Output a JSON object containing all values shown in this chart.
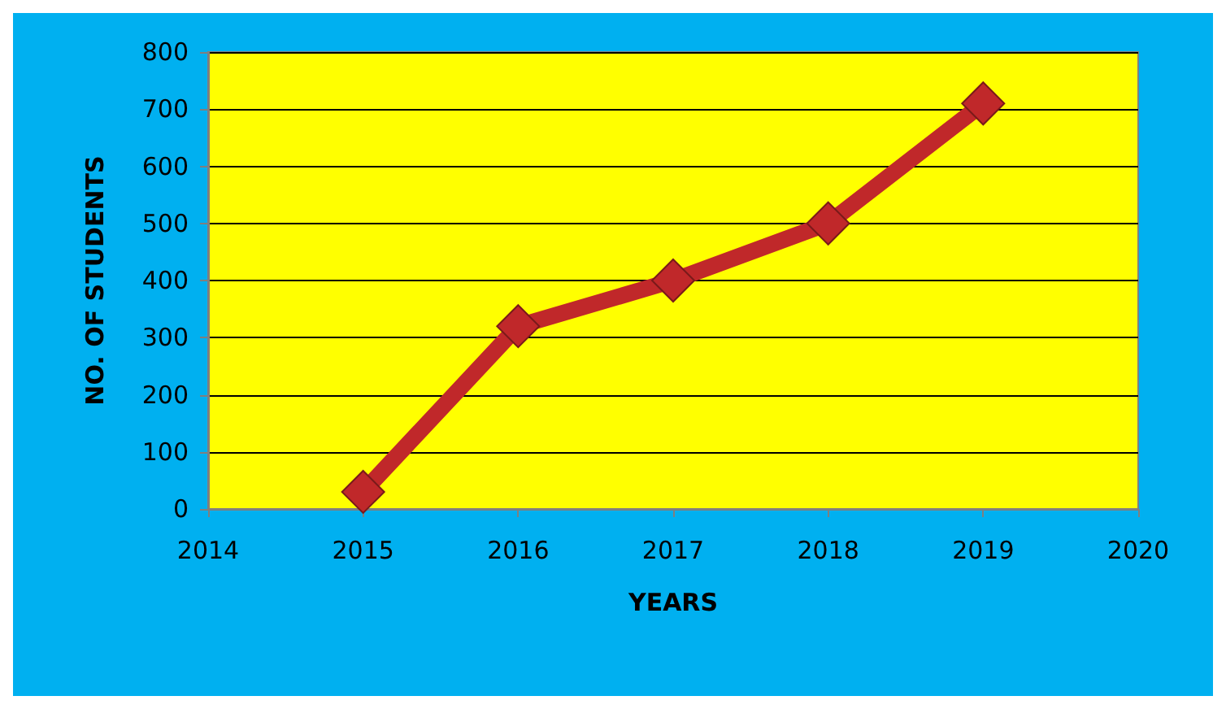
{
  "chart_data": {
    "type": "line",
    "xlabel": "YEARS",
    "ylabel": "NO. OF STUDENTS",
    "x": [
      2015,
      2016,
      2017,
      2018,
      2019
    ],
    "series": [
      {
        "color": "#c0282a",
        "values": [
          30,
          320,
          400,
          500,
          710
        ]
      }
    ],
    "xlim": [
      2014,
      2020
    ],
    "xticks": [
      2014,
      2015,
      2016,
      2017,
      2018,
      2019,
      2020
    ],
    "ylim": [
      0,
      800
    ],
    "yticks": [
      0,
      100,
      200,
      300,
      400,
      500,
      600,
      700,
      800
    ],
    "grid": "y",
    "marker": "diamond",
    "line_style": "solid"
  }
}
